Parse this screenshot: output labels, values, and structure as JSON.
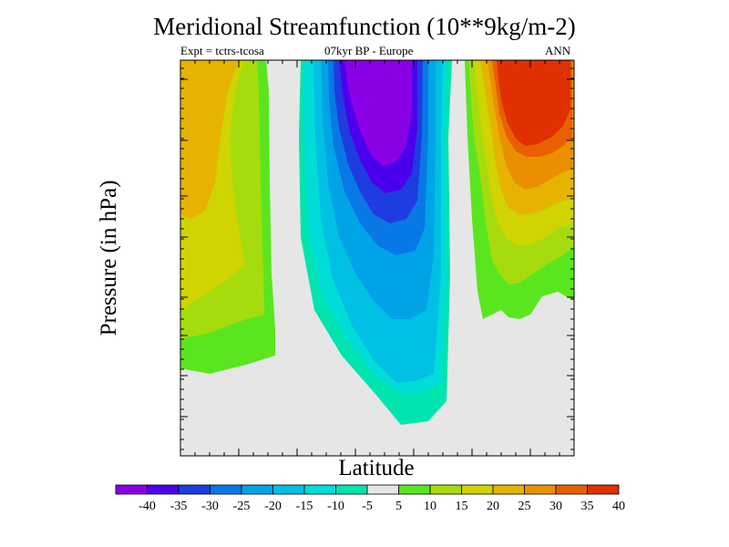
{
  "chart_data": {
    "type": "heatmap",
    "title": "Meridional Streamfunction (10**9kg/m-2)",
    "subtitle_left": "Expt = tctrs-tcosa",
    "subtitle_center": "07kyr BP - Europe",
    "subtitle_right": "ANN",
    "xlabel": "Latitude",
    "ylabel": "Pressure (in hPa)",
    "colorbar": {
      "levels": [
        -40,
        -35,
        -30,
        -25,
        -20,
        -15,
        -10,
        -5,
        5,
        10,
        15,
        20,
        25,
        30,
        35,
        40
      ],
      "labels": [
        "-40",
        "-35",
        "-30",
        "-25",
        "-20",
        "-15",
        "-10",
        "-5",
        "5",
        "10",
        "15",
        "20",
        "25",
        "30",
        "35",
        "40"
      ],
      "colors": [
        "#8a00e6",
        "#4a00ec",
        "#1e3ce0",
        "#0878e6",
        "#00a4e6",
        "#00c0e4",
        "#00dcd8",
        "#00e4b0",
        "#e6e6e6",
        "#5ae61e",
        "#a6dc0e",
        "#d0d400",
        "#e6b400",
        "#ea9000",
        "#e86000",
        "#e03000"
      ]
    },
    "regions": [
      {
        "name": "left-positive-cell",
        "sign": "positive",
        "max_value": 25
      },
      {
        "name": "central-negative-cell",
        "sign": "negative",
        "min_value": -40
      },
      {
        "name": "right-positive-cell",
        "sign": "positive",
        "max_value": 40
      }
    ]
  }
}
